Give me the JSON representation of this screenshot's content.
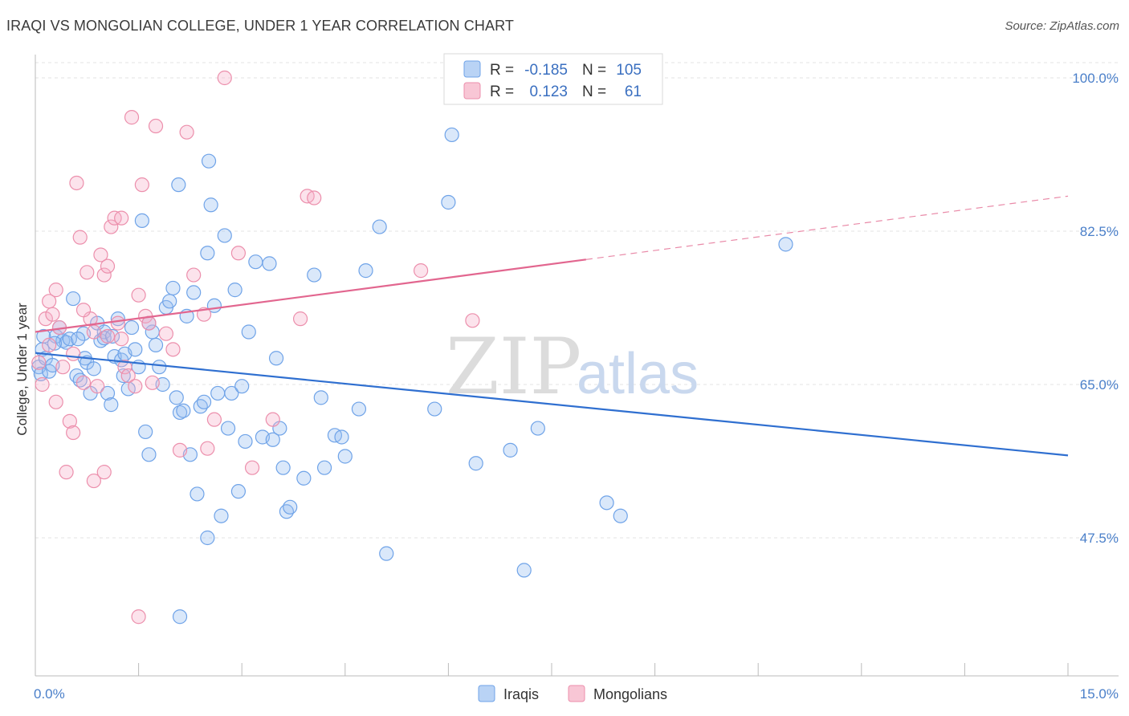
{
  "title": "IRAQI VS MONGOLIAN COLLEGE, UNDER 1 YEAR CORRELATION CHART",
  "source": "Source: ZipAtlas.com",
  "watermark": {
    "zip": "ZIP",
    "atlas": "atlas"
  },
  "legend": {
    "r_label": "R =",
    "n_label": "N =",
    "rows": [
      {
        "name": "Iraqis",
        "r": "-0.185",
        "n": "105",
        "color": "#6fa3e8",
        "fill": "#b9d3f5"
      },
      {
        "name": "Mongolians",
        "r": "0.123",
        "n": "61",
        "color": "#ec8fac",
        "fill": "#f8c6d5"
      }
    ]
  },
  "chart_data": {
    "type": "scatter",
    "xlabel": "",
    "ylabel": "College, Under 1 year",
    "xlim": [
      0,
      15
    ],
    "ylim": [
      32,
      102
    ],
    "x_tick_labels": [
      "0.0%",
      "15.0%"
    ],
    "y_ticks": [
      {
        "value": 100,
        "label": "100.0%"
      },
      {
        "value": 82.5,
        "label": "82.5%"
      },
      {
        "value": 65,
        "label": "65.0%"
      },
      {
        "value": 47.5,
        "label": "47.5%"
      }
    ],
    "grid": "horizontal dashed",
    "legend_placement": "top-center",
    "series": [
      {
        "name": "Iraqis",
        "color": "#6fa3e8",
        "trend": {
          "x": [
            0.0,
            15.0
          ],
          "y": [
            68.6,
            56.9
          ],
          "dashed_from": null
        },
        "points": [
          [
            0.05,
            67.0
          ],
          [
            0.08,
            66.2
          ],
          [
            0.1,
            69.0
          ],
          [
            0.15,
            68.0
          ],
          [
            0.2,
            66.5
          ],
          [
            0.25,
            67.2
          ],
          [
            0.3,
            70.5
          ],
          [
            0.35,
            71.5
          ],
          [
            0.4,
            70.0
          ],
          [
            0.45,
            69.8
          ],
          [
            0.5,
            70.2
          ],
          [
            0.55,
            74.8
          ],
          [
            0.6,
            66.0
          ],
          [
            0.65,
            65.5
          ],
          [
            0.7,
            70.8
          ],
          [
            0.72,
            68.0
          ],
          [
            0.75,
            67.5
          ],
          [
            0.8,
            64.0
          ],
          [
            0.85,
            66.8
          ],
          [
            0.9,
            72.0
          ],
          [
            0.95,
            70.0
          ],
          [
            1.0,
            71.0
          ],
          [
            1.05,
            64.0
          ],
          [
            1.1,
            62.7
          ],
          [
            1.15,
            68.2
          ],
          [
            1.2,
            72.5
          ],
          [
            1.25,
            67.8
          ],
          [
            1.3,
            68.5
          ],
          [
            1.35,
            64.5
          ],
          [
            1.4,
            71.5
          ],
          [
            1.45,
            69.0
          ],
          [
            1.5,
            67.0
          ],
          [
            1.55,
            83.7
          ],
          [
            1.6,
            59.6
          ],
          [
            1.65,
            57.0
          ],
          [
            1.7,
            71.0
          ],
          [
            1.75,
            69.5
          ],
          [
            1.8,
            67.0
          ],
          [
            1.85,
            65.0
          ],
          [
            1.9,
            73.8
          ],
          [
            1.95,
            74.5
          ],
          [
            2.0,
            76.0
          ],
          [
            2.05,
            63.5
          ],
          [
            2.1,
            61.8
          ],
          [
            2.15,
            62.0
          ],
          [
            2.2,
            72.8
          ],
          [
            2.25,
            57.0
          ],
          [
            2.3,
            75.5
          ],
          [
            2.35,
            52.5
          ],
          [
            2.4,
            62.5
          ],
          [
            2.45,
            63.0
          ],
          [
            2.5,
            47.5
          ],
          [
            2.55,
            85.5
          ],
          [
            2.6,
            74.0
          ],
          [
            2.65,
            64.0
          ],
          [
            2.7,
            50.0
          ],
          [
            2.75,
            82.0
          ],
          [
            2.8,
            60.0
          ],
          [
            2.85,
            64.0
          ],
          [
            2.9,
            75.8
          ],
          [
            2.95,
            52.8
          ],
          [
            3.0,
            64.8
          ],
          [
            3.05,
            58.5
          ],
          [
            3.1,
            71.0
          ],
          [
            3.2,
            79.0
          ],
          [
            3.3,
            59.0
          ],
          [
            3.4,
            78.8
          ],
          [
            3.45,
            58.7
          ],
          [
            3.5,
            68.0
          ],
          [
            3.55,
            60.0
          ],
          [
            3.6,
            55.5
          ],
          [
            3.65,
            50.5
          ],
          [
            3.7,
            51.0
          ],
          [
            3.9,
            54.3
          ],
          [
            4.05,
            77.5
          ],
          [
            4.15,
            63.5
          ],
          [
            4.2,
            55.5
          ],
          [
            4.35,
            59.2
          ],
          [
            4.45,
            59.0
          ],
          [
            4.5,
            56.8
          ],
          [
            4.7,
            62.2
          ],
          [
            4.8,
            78.0
          ],
          [
            5.0,
            83.0
          ],
          [
            5.1,
            45.7
          ],
          [
            5.8,
            62.2
          ],
          [
            6.0,
            85.8
          ],
          [
            6.05,
            93.5
          ],
          [
            6.4,
            56.0
          ],
          [
            6.9,
            57.5
          ],
          [
            7.1,
            43.8
          ],
          [
            7.3,
            60.0
          ],
          [
            8.3,
            51.5
          ],
          [
            8.5,
            50.0
          ],
          [
            10.9,
            81.0
          ],
          [
            2.1,
            38.5
          ],
          [
            0.12,
            70.5
          ],
          [
            0.28,
            69.7
          ],
          [
            0.62,
            70.2
          ],
          [
            1.0,
            70.3
          ],
          [
            1.12,
            70.5
          ],
          [
            1.28,
            66.0
          ],
          [
            2.08,
            87.8
          ],
          [
            2.5,
            80.0
          ],
          [
            2.52,
            90.5
          ],
          [
            1.65,
            72.0
          ]
        ]
      },
      {
        "name": "Mongolians",
        "color": "#ec8fac",
        "trend": {
          "x": [
            0.0,
            15.0
          ],
          "y": [
            71.0,
            86.5
          ],
          "solid_until": 8.0
        },
        "points": [
          [
            0.05,
            67.5
          ],
          [
            0.1,
            65.0
          ],
          [
            0.15,
            72.5
          ],
          [
            0.2,
            74.5
          ],
          [
            0.25,
            73.0
          ],
          [
            0.3,
            75.8
          ],
          [
            0.35,
            71.5
          ],
          [
            0.4,
            67.0
          ],
          [
            0.45,
            55.0
          ],
          [
            0.5,
            60.8
          ],
          [
            0.55,
            59.5
          ],
          [
            0.6,
            88.0
          ],
          [
            0.65,
            81.8
          ],
          [
            0.7,
            65.2
          ],
          [
            0.75,
            77.8
          ],
          [
            0.8,
            72.5
          ],
          [
            0.85,
            54.0
          ],
          [
            0.9,
            64.8
          ],
          [
            0.95,
            79.8
          ],
          [
            1.0,
            77.5
          ],
          [
            1.05,
            70.5
          ],
          [
            1.1,
            83.0
          ],
          [
            1.15,
            84.0
          ],
          [
            1.2,
            72.0
          ],
          [
            1.25,
            70.2
          ],
          [
            1.3,
            67.0
          ],
          [
            1.35,
            66.0
          ],
          [
            1.4,
            95.5
          ],
          [
            1.45,
            64.8
          ],
          [
            1.5,
            75.2
          ],
          [
            1.55,
            87.8
          ],
          [
            1.6,
            72.8
          ],
          [
            1.65,
            72.0
          ],
          [
            1.7,
            65.2
          ],
          [
            1.75,
            94.5
          ],
          [
            1.9,
            70.8
          ],
          [
            2.0,
            69.0
          ],
          [
            2.1,
            57.5
          ],
          [
            2.2,
            93.8
          ],
          [
            2.3,
            77.5
          ],
          [
            2.45,
            73.0
          ],
          [
            2.5,
            57.7
          ],
          [
            2.6,
            61.0
          ],
          [
            2.75,
            100.0
          ],
          [
            2.95,
            80.0
          ],
          [
            3.15,
            55.5
          ],
          [
            3.45,
            61.0
          ],
          [
            3.85,
            72.5
          ],
          [
            3.95,
            86.5
          ],
          [
            4.05,
            86.3
          ],
          [
            5.6,
            78.0
          ],
          [
            6.35,
            72.3
          ],
          [
            1.5,
            38.5
          ],
          [
            0.3,
            63.0
          ],
          [
            0.55,
            68.5
          ],
          [
            0.85,
            71.0
          ],
          [
            1.05,
            78.5
          ],
          [
            1.25,
            84.0
          ],
          [
            1.0,
            55.0
          ],
          [
            0.7,
            73.5
          ],
          [
            0.2,
            69.5
          ]
        ]
      }
    ]
  }
}
